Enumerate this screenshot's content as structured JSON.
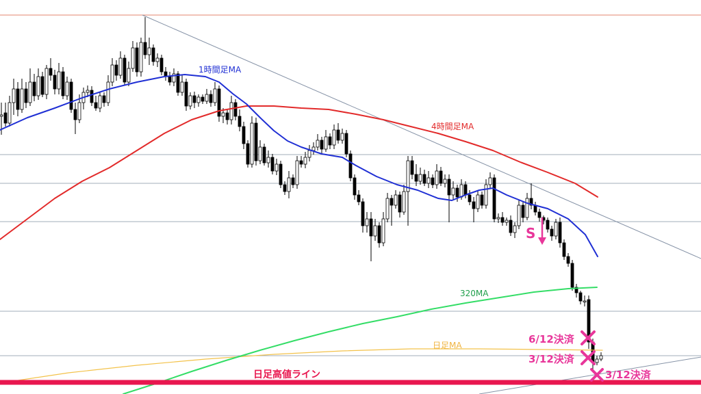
{
  "chart_data": {
    "type": "candlestick",
    "ylim": [
      0,
      576
    ],
    "grid": true,
    "horizontal_levels": [
      22,
      226,
      268,
      324,
      455,
      520
    ],
    "candles": [
      [
        0,
        170,
        168,
        197,
        150
      ],
      [
        6,
        165,
        180,
        185,
        150
      ],
      [
        12,
        180,
        150,
        185,
        140
      ],
      [
        18,
        150,
        130,
        168,
        115
      ],
      [
        24,
        130,
        160,
        170,
        120
      ],
      [
        30,
        160,
        130,
        165,
        115
      ],
      [
        36,
        130,
        150,
        158,
        120
      ],
      [
        42,
        150,
        120,
        155,
        100
      ],
      [
        48,
        120,
        140,
        148,
        108
      ],
      [
        54,
        140,
        112,
        146,
        100
      ],
      [
        60,
        112,
        138,
        142,
        105
      ],
      [
        66,
        138,
        100,
        145,
        95
      ],
      [
        72,
        100,
        110,
        118,
        85
      ],
      [
        78,
        110,
        130,
        138,
        102
      ],
      [
        84,
        130,
        105,
        138,
        92
      ],
      [
        90,
        105,
        140,
        145,
        98
      ],
      [
        96,
        140,
        120,
        146,
        112
      ],
      [
        102,
        120,
        160,
        165,
        115
      ],
      [
        108,
        160,
        175,
        196,
        150
      ],
      [
        114,
        175,
        150,
        180,
        138
      ],
      [
        120,
        150,
        135,
        160,
        128
      ],
      [
        126,
        135,
        132,
        142,
        125
      ],
      [
        132,
        132,
        150,
        155,
        126
      ],
      [
        138,
        150,
        158,
        162,
        140
      ],
      [
        144,
        158,
        140,
        164,
        134
      ],
      [
        150,
        140,
        150,
        156,
        135
      ],
      [
        156,
        150,
        120,
        155,
        110
      ],
      [
        162,
        120,
        95,
        126,
        85
      ],
      [
        168,
        95,
        110,
        118,
        88
      ],
      [
        174,
        110,
        85,
        115,
        75
      ],
      [
        180,
        85,
        120,
        125,
        80
      ],
      [
        186,
        120,
        100,
        126,
        90
      ],
      [
        192,
        100,
        70,
        105,
        60
      ],
      [
        198,
        70,
        105,
        112,
        62
      ],
      [
        204,
        105,
        62,
        112,
        55
      ],
      [
        210,
        62,
        80,
        86,
        25
      ],
      [
        216,
        80,
        70,
        95,
        55
      ],
      [
        222,
        70,
        90,
        96,
        65
      ],
      [
        228,
        90,
        85,
        98,
        78
      ],
      [
        234,
        85,
        105,
        110,
        80
      ],
      [
        240,
        105,
        112,
        118,
        98
      ],
      [
        246,
        112,
        120,
        125,
        105
      ],
      [
        252,
        120,
        108,
        126,
        100
      ],
      [
        258,
        108,
        135,
        140,
        104
      ],
      [
        264,
        135,
        120,
        140,
        110
      ],
      [
        270,
        120,
        155,
        162,
        115
      ],
      [
        276,
        155,
        140,
        160,
        135
      ],
      [
        282,
        140,
        150,
        158,
        134
      ],
      [
        288,
        150,
        142,
        156,
        138
      ],
      [
        294,
        142,
        148,
        152,
        138
      ],
      [
        300,
        148,
        138,
        152,
        130
      ],
      [
        306,
        138,
        150,
        156,
        132
      ],
      [
        312,
        150,
        130,
        155,
        120
      ],
      [
        318,
        130,
        170,
        178,
        125
      ],
      [
        324,
        170,
        165,
        180,
        158
      ],
      [
        330,
        165,
        175,
        182,
        160
      ],
      [
        336,
        175,
        150,
        182,
        140
      ],
      [
        342,
        150,
        170,
        176,
        145
      ],
      [
        348,
        170,
        185,
        192,
        160
      ],
      [
        354,
        185,
        210,
        218,
        178
      ],
      [
        360,
        210,
        240,
        245,
        205
      ],
      [
        366,
        240,
        180,
        245,
        170
      ],
      [
        372,
        180,
        235,
        242,
        172
      ],
      [
        378,
        235,
        215,
        240,
        205
      ],
      [
        384,
        215,
        238,
        242,
        210
      ],
      [
        390,
        238,
        230,
        245,
        220
      ],
      [
        396,
        230,
        250,
        255,
        225
      ],
      [
        402,
        250,
        240,
        256,
        232
      ],
      [
        408,
        240,
        270,
        275,
        235
      ],
      [
        414,
        270,
        280,
        285,
        265
      ],
      [
        420,
        280,
        260,
        290,
        250
      ],
      [
        426,
        260,
        270,
        275,
        255
      ],
      [
        432,
        270,
        235,
        276,
        228
      ],
      [
        438,
        235,
        240,
        245,
        228
      ],
      [
        444,
        240,
        230,
        246,
        222
      ],
      [
        450,
        230,
        220,
        236,
        212
      ],
      [
        456,
        220,
        215,
        226,
        208
      ],
      [
        462,
        215,
        205,
        220,
        196
      ],
      [
        468,
        205,
        218,
        224,
        200
      ],
      [
        474,
        218,
        200,
        222,
        190
      ],
      [
        480,
        200,
        212,
        218,
        195
      ],
      [
        486,
        212,
        190,
        218,
        182
      ],
      [
        492,
        190,
        205,
        210,
        180
      ],
      [
        498,
        205,
        195,
        210,
        188
      ],
      [
        504,
        195,
        225,
        230,
        190
      ],
      [
        510,
        225,
        260,
        265,
        220
      ],
      [
        516,
        260,
        285,
        292,
        255
      ],
      [
        522,
        285,
        295,
        300,
        278
      ],
      [
        528,
        295,
        330,
        340,
        290
      ],
      [
        534,
        330,
        320,
        340,
        310
      ],
      [
        540,
        320,
        345,
        382,
        310
      ],
      [
        546,
        345,
        330,
        352,
        320
      ],
      [
        552,
        330,
        355,
        362,
        325
      ],
      [
        558,
        355,
        320,
        360,
        310
      ],
      [
        564,
        320,
        290,
        325,
        282
      ],
      [
        570,
        290,
        300,
        330,
        285
      ],
      [
        576,
        300,
        285,
        305,
        278
      ],
      [
        582,
        285,
        310,
        318,
        280
      ],
      [
        588,
        310,
        280,
        314,
        270
      ],
      [
        594,
        280,
        235,
        330,
        228
      ],
      [
        600,
        235,
        255,
        262,
        228
      ],
      [
        606,
        255,
        265,
        272,
        240
      ],
      [
        612,
        265,
        255,
        270,
        245
      ],
      [
        618,
        255,
        268,
        272,
        248
      ],
      [
        624,
        268,
        260,
        275,
        250
      ],
      [
        630,
        260,
        270,
        275,
        255
      ],
      [
        636,
        270,
        250,
        276,
        240
      ],
      [
        642,
        250,
        268,
        272,
        244
      ],
      [
        648,
        268,
        262,
        274,
        255
      ],
      [
        654,
        262,
        285,
        325,
        255
      ],
      [
        660,
        285,
        275,
        292,
        265
      ],
      [
        666,
        275,
        288,
        295,
        270
      ],
      [
        672,
        288,
        270,
        292,
        262
      ],
      [
        678,
        270,
        285,
        290,
        265
      ],
      [
        684,
        285,
        295,
        300,
        278
      ],
      [
        690,
        295,
        305,
        325,
        288
      ],
      [
        696,
        305,
        285,
        310,
        278
      ],
      [
        702,
        285,
        300,
        305,
        280
      ],
      [
        708,
        300,
        270,
        305,
        262
      ],
      [
        714,
        270,
        260,
        275,
        252
      ],
      [
        720,
        260,
        320,
        325,
        255
      ],
      [
        726,
        320,
        318,
        326,
        312
      ],
      [
        732,
        318,
        325,
        330,
        310
      ],
      [
        738,
        325,
        322,
        330,
        318
      ],
      [
        744,
        322,
        340,
        345,
        315
      ],
      [
        750,
        340,
        330,
        348,
        325
      ],
      [
        756,
        330,
        300,
        335,
        292
      ],
      [
        762,
        300,
        318,
        325,
        295
      ],
      [
        768,
        318,
        290,
        322,
        282
      ],
      [
        774,
        290,
        300,
        306,
        268
      ],
      [
        780,
        300,
        310,
        315,
        295
      ],
      [
        786,
        310,
        318,
        324,
        305
      ],
      [
        792,
        318,
        322,
        328,
        315
      ],
      [
        798,
        322,
        335,
        340,
        318
      ],
      [
        804,
        335,
        345,
        352,
        330
      ],
      [
        810,
        345,
        325,
        350,
        320
      ],
      [
        816,
        325,
        355,
        362,
        318
      ],
      [
        822,
        355,
        375,
        380,
        350
      ],
      [
        828,
        375,
        385,
        390,
        370
      ],
      [
        834,
        385,
        420,
        425,
        380
      ],
      [
        840,
        420,
        428,
        435,
        415
      ],
      [
        846,
        428,
        440,
        445,
        425
      ],
      [
        852,
        440,
        440,
        448,
        432
      ],
      [
        858,
        438,
        500,
        510,
        432
      ],
      [
        864,
        500,
        530,
        540,
        495
      ],
      [
        870,
        530,
        525,
        534,
        520
      ],
      [
        876,
        525,
        520,
        528,
        515
      ]
    ],
    "ma_1h": [
      [
        0,
        190
      ],
      [
        40,
        172
      ],
      [
        80,
        158
      ],
      [
        120,
        143
      ],
      [
        160,
        130
      ],
      [
        200,
        120
      ],
      [
        240,
        112
      ],
      [
        270,
        109
      ],
      [
        300,
        112
      ],
      [
        320,
        120
      ],
      [
        340,
        137
      ],
      [
        360,
        152
      ],
      [
        380,
        172
      ],
      [
        400,
        191
      ],
      [
        420,
        206
      ],
      [
        440,
        215
      ],
      [
        470,
        225
      ],
      [
        500,
        230
      ],
      [
        520,
        242
      ],
      [
        550,
        258
      ],
      [
        580,
        270
      ],
      [
        610,
        278
      ],
      [
        640,
        290
      ],
      [
        660,
        293
      ],
      [
        680,
        285
      ],
      [
        700,
        278
      ],
      [
        720,
        275
      ],
      [
        740,
        285
      ],
      [
        770,
        297
      ],
      [
        800,
        305
      ],
      [
        830,
        320
      ],
      [
        855,
        343
      ],
      [
        873,
        375
      ]
    ],
    "ma_4h": [
      [
        0,
        350
      ],
      [
        40,
        320
      ],
      [
        80,
        290
      ],
      [
        120,
        265
      ],
      [
        160,
        245
      ],
      [
        200,
        220
      ],
      [
        240,
        195
      ],
      [
        280,
        175
      ],
      [
        320,
        162
      ],
      [
        360,
        155
      ],
      [
        400,
        155
      ],
      [
        440,
        158
      ],
      [
        480,
        160
      ],
      [
        520,
        167
      ],
      [
        560,
        175
      ],
      [
        600,
        185
      ],
      [
        640,
        195
      ],
      [
        680,
        207
      ],
      [
        720,
        220
      ],
      [
        760,
        237
      ],
      [
        800,
        252
      ],
      [
        840,
        268
      ],
      [
        873,
        288
      ]
    ],
    "ma_320": [
      [
        180,
        576
      ],
      [
        230,
        560
      ],
      [
        280,
        543
      ],
      [
        330,
        527
      ],
      [
        380,
        512
      ],
      [
        430,
        498
      ],
      [
        480,
        485
      ],
      [
        530,
        473
      ],
      [
        580,
        463
      ],
      [
        630,
        452
      ],
      [
        680,
        443
      ],
      [
        730,
        435
      ],
      [
        780,
        427
      ],
      [
        830,
        422
      ],
      [
        872,
        420
      ]
    ],
    "ma_daily": [
      [
        0,
        560
      ],
      [
        100,
        545
      ],
      [
        200,
        534
      ],
      [
        300,
        525
      ],
      [
        400,
        518
      ],
      [
        500,
        513
      ],
      [
        600,
        510
      ],
      [
        700,
        510
      ],
      [
        800,
        511
      ],
      [
        880,
        512
      ]
    ],
    "trendline_down": [
      [
        208,
        22
      ],
      [
        1024,
        378
      ]
    ],
    "trendline_up": [
      [
        700,
        576
      ],
      [
        1024,
        522
      ]
    ],
    "labels": {
      "ma_1h": "1時間足MA",
      "ma_4h": "4時間足MA",
      "ma_320": "320MA",
      "ma_daily": "日足MA",
      "daily_high_line": "日足高値ライン",
      "sell_marker": "S",
      "settle_1": "6/12決済",
      "settle_2": "3/12決済",
      "settle_3": "3/12決済"
    },
    "colors": {
      "ma_1h": "#1f2fd4",
      "ma_4h": "#e22a2a",
      "ma_320": "#33dd66",
      "ma_daily": "#f3c24a",
      "resistance": "#e07a5f",
      "high_line": "#e8174f",
      "accent": "#e8369a",
      "grid": "#8a99a8",
      "candle": "#000000"
    }
  }
}
